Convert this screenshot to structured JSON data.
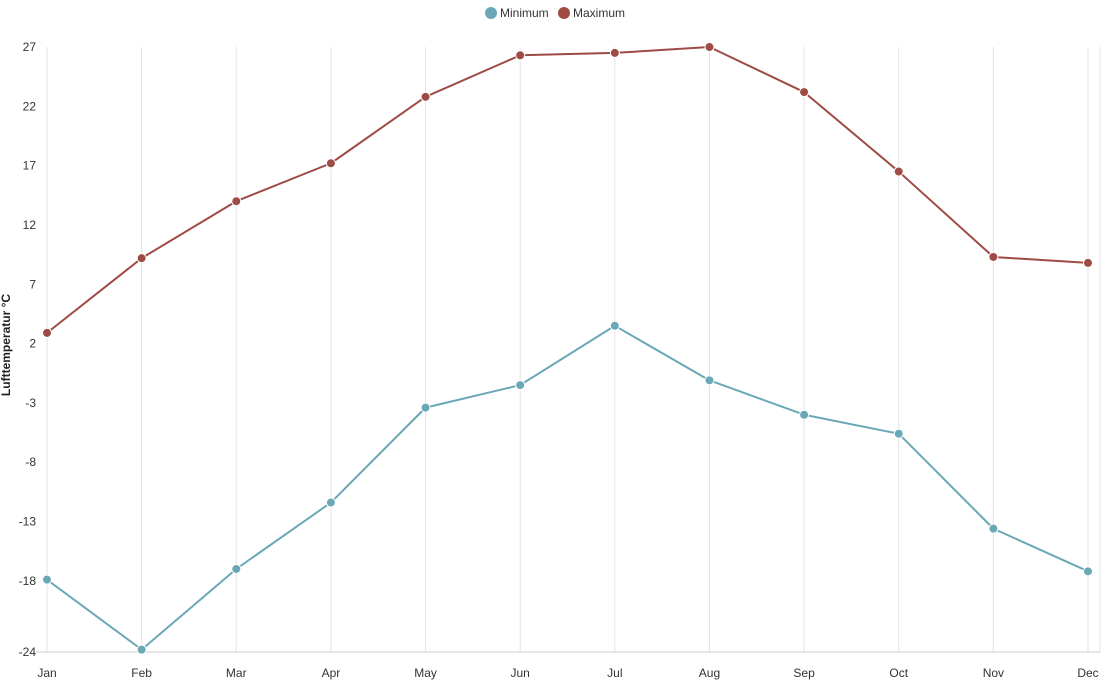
{
  "chart_data": {
    "type": "line",
    "title": "",
    "xlabel": "",
    "ylabel": "Lufttemperatur °C",
    "categories": [
      "Jan",
      "Feb",
      "Mar",
      "Apr",
      "May",
      "Jun",
      "Jul",
      "Aug",
      "Sep",
      "Oct",
      "Nov",
      "Dec"
    ],
    "y_ticks": [
      -24,
      -18,
      -13,
      -8,
      -3,
      2,
      7,
      12,
      17,
      22,
      27
    ],
    "ylim": [
      -24,
      27
    ],
    "grid": "vertical",
    "legend_position": "top-center",
    "series": [
      {
        "name": "Minimum",
        "color": "#6aa8b8",
        "values": [
          -17.9,
          -23.8,
          -17.0,
          -11.4,
          -3.4,
          -1.5,
          3.5,
          -1.1,
          -4.0,
          -5.6,
          -13.6,
          -17.2
        ]
      },
      {
        "name": "Maximum",
        "color": "#9e4b45",
        "values": [
          2.9,
          9.2,
          14.0,
          17.2,
          22.8,
          26.3,
          26.5,
          27.0,
          23.2,
          16.5,
          9.3,
          8.8
        ]
      }
    ]
  }
}
